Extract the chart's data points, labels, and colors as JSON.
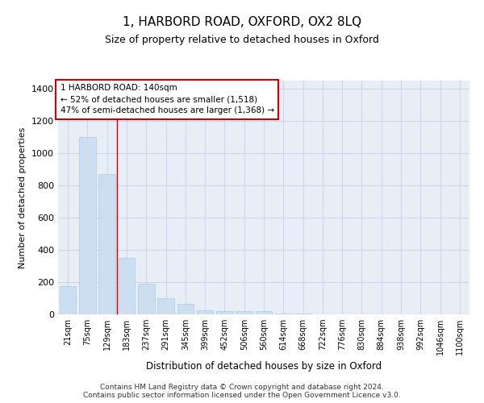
{
  "title": "1, HARBORD ROAD, OXFORD, OX2 8LQ",
  "subtitle": "Size of property relative to detached houses in Oxford",
  "xlabel": "Distribution of detached houses by size in Oxford",
  "ylabel": "Number of detached properties",
  "categories": [
    "21sqm",
    "75sqm",
    "129sqm",
    "183sqm",
    "237sqm",
    "291sqm",
    "345sqm",
    "399sqm",
    "452sqm",
    "506sqm",
    "560sqm",
    "614sqm",
    "668sqm",
    "722sqm",
    "776sqm",
    "830sqm",
    "884sqm",
    "938sqm",
    "992sqm",
    "1046sqm",
    "1100sqm"
  ],
  "values": [
    175,
    1100,
    870,
    350,
    190,
    100,
    65,
    25,
    20,
    20,
    20,
    5,
    5,
    0,
    0,
    0,
    0,
    0,
    0,
    0,
    0
  ],
  "bar_color": "#ccdff0",
  "bar_edge_color": "#b0c8de",
  "grid_color": "#ccd8e8",
  "background_color": "#e8eef6",
  "property_line_x": 2.5,
  "annotation_text_line1": "1 HARBORD ROAD: 140sqm",
  "annotation_text_line2": "← 52% of detached houses are smaller (1,518)",
  "annotation_text_line3": "47% of semi-detached houses are larger (1,368) →",
  "annotation_box_color": "#cc0000",
  "ylim": [
    0,
    1450
  ],
  "yticks": [
    0,
    200,
    400,
    600,
    800,
    1000,
    1200,
    1400
  ],
  "footnote": "Contains HM Land Registry data © Crown copyright and database right 2024.\nContains public sector information licensed under the Open Government Licence v3.0."
}
